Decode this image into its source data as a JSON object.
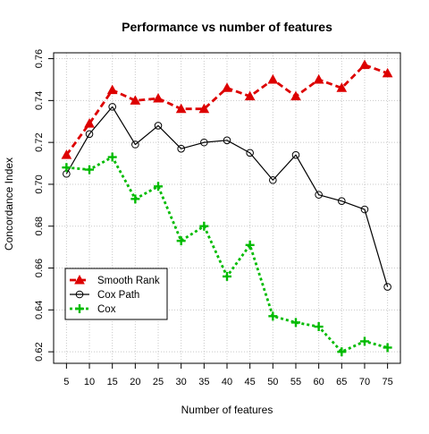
{
  "chart_data": {
    "type": "line",
    "title": "Performance vs number of features",
    "xlabel": "Number of features",
    "ylabel": "Concordance Index",
    "x": [
      5,
      10,
      15,
      20,
      25,
      30,
      35,
      40,
      45,
      50,
      55,
      60,
      65,
      70,
      75
    ],
    "x_ticks": [
      "5",
      "10",
      "15",
      "20",
      "25",
      "30",
      "35",
      "40",
      "45",
      "50",
      "55",
      "60",
      "65",
      "70",
      "75"
    ],
    "y_ticks": [
      "0.62",
      "0.64",
      "0.66",
      "0.68",
      "0.70",
      "0.72",
      "0.74",
      "0.76"
    ],
    "xlim": [
      2.2,
      77.8
    ],
    "ylim": [
      0.6145,
      0.7628
    ],
    "grid": true,
    "legend_position": "bottom-left",
    "series": [
      {
        "name": "Smooth Rank",
        "color": "#dd0000",
        "dash": "dashed",
        "marker": "triangle-filled",
        "values": [
          0.714,
          0.729,
          0.745,
          0.74,
          0.741,
          0.736,
          0.736,
          0.746,
          0.742,
          0.75,
          0.742,
          0.75,
          0.746,
          0.757,
          0.753
        ]
      },
      {
        "name": "Cox Path",
        "color": "#000000",
        "dash": "solid",
        "marker": "circle-open",
        "values": [
          0.705,
          0.724,
          0.737,
          0.719,
          0.728,
          0.717,
          0.72,
          0.721,
          0.715,
          0.702,
          0.714,
          0.695,
          0.692,
          0.688,
          0.651
        ]
      },
      {
        "name": "Cox",
        "color": "#00bb00",
        "dash": "dotted",
        "marker": "plus",
        "values": [
          0.708,
          0.707,
          0.713,
          0.693,
          0.699,
          0.673,
          0.68,
          0.656,
          0.671,
          0.637,
          0.634,
          0.632,
          0.62,
          0.625,
          0.622
        ]
      }
    ]
  }
}
